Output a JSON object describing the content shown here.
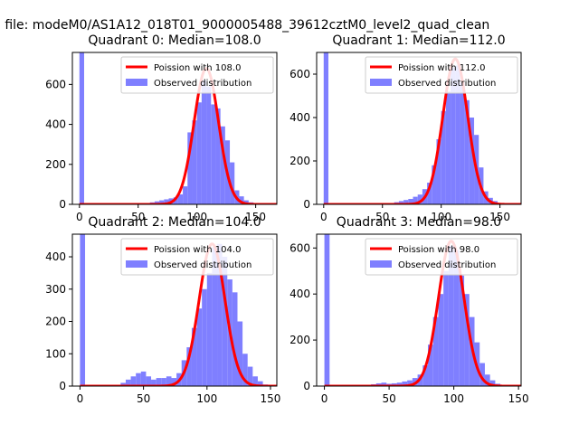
{
  "suptitle": "n file: modeM0/AS1A12_018T01_9000005488_39612cztM0_level2_quad_clean",
  "colors": {
    "bar": "#7f7fff",
    "line": "#ff0000"
  },
  "chart_data": [
    {
      "type": "bar",
      "title": "Quadrant 0: Median=108.0",
      "xlim": [
        -6,
        168
      ],
      "ylim": [
        0,
        760
      ],
      "xticks": [
        0,
        50,
        100,
        150
      ],
      "yticks": [
        0,
        200,
        400,
        600
      ],
      "legend": {
        "placement": "top-right",
        "line_label": "Poission with 108.0",
        "bar_label": "Observed distribution"
      },
      "bins": {
        "x": [
          0,
          4,
          8,
          12,
          16,
          20,
          24,
          28,
          32,
          36,
          40,
          44,
          48,
          52,
          56,
          60,
          64,
          68,
          72,
          76,
          80,
          84,
          88,
          92,
          96,
          100,
          104,
          108,
          112,
          116,
          120,
          124,
          128,
          132,
          136,
          140,
          144,
          148,
          152,
          156,
          160,
          164
        ],
        "values": [
          760,
          0,
          0,
          0,
          0,
          0,
          0,
          0,
          0,
          0,
          0,
          0,
          2,
          4,
          6,
          10,
          15,
          20,
          25,
          30,
          35,
          50,
          90,
          360,
          420,
          510,
          620,
          590,
          500,
          480,
          390,
          320,
          210,
          70,
          40,
          20,
          10,
          5,
          2,
          0,
          0,
          0
        ]
      },
      "poisson": {
        "mean": 108.0,
        "peak": 680
      }
    },
    {
      "type": "bar",
      "title": "Quadrant 1: Median=112.0",
      "xlim": [
        -6,
        168
      ],
      "ylim": [
        0,
        700
      ],
      "xticks": [
        0,
        50,
        100,
        150
      ],
      "yticks": [
        0,
        200,
        400,
        600
      ],
      "legend": {
        "placement": "top-right",
        "line_label": "Poission with 112.0",
        "bar_label": "Observed distribution"
      },
      "bins": {
        "x": [
          0,
          4,
          8,
          12,
          16,
          20,
          24,
          28,
          32,
          36,
          40,
          44,
          48,
          52,
          56,
          60,
          64,
          68,
          72,
          76,
          80,
          84,
          88,
          92,
          96,
          100,
          104,
          108,
          112,
          116,
          120,
          124,
          128,
          132,
          136,
          140,
          144,
          148,
          152,
          156,
          160,
          164
        ],
        "values": [
          700,
          0,
          0,
          0,
          0,
          0,
          0,
          0,
          0,
          0,
          0,
          0,
          2,
          4,
          6,
          10,
          15,
          20,
          25,
          35,
          45,
          70,
          100,
          180,
          300,
          430,
          520,
          630,
          640,
          560,
          480,
          400,
          320,
          170,
          60,
          30,
          15,
          5,
          2,
          0,
          0,
          0
        ]
      },
      "poisson": {
        "mean": 112.0,
        "peak": 670
      }
    },
    {
      "type": "bar",
      "title": "Quadrant 2: Median=104.0",
      "xlim": [
        -6,
        155
      ],
      "ylim": [
        0,
        470
      ],
      "xticks": [
        0,
        50,
        100,
        150
      ],
      "yticks": [
        0,
        100,
        200,
        300,
        400
      ],
      "legend": {
        "placement": "top-right",
        "line_label": "Poission with 104.0",
        "bar_label": "Observed distribution"
      },
      "bins": {
        "x": [
          0,
          4,
          8,
          12,
          16,
          20,
          24,
          28,
          32,
          36,
          40,
          44,
          48,
          52,
          56,
          60,
          64,
          68,
          72,
          76,
          80,
          84,
          88,
          92,
          96,
          100,
          104,
          108,
          112,
          116,
          120,
          124,
          128,
          132,
          136,
          140,
          144,
          148
        ],
        "values": [
          470,
          0,
          0,
          0,
          0,
          0,
          0,
          0,
          10,
          20,
          30,
          40,
          45,
          30,
          20,
          25,
          25,
          30,
          25,
          40,
          80,
          120,
          180,
          240,
          300,
          350,
          430,
          440,
          400,
          330,
          290,
          200,
          100,
          60,
          30,
          15,
          5,
          2
        ]
      },
      "poisson": {
        "mean": 104.0,
        "peak": 440
      }
    },
    {
      "type": "bar",
      "title": "Quadrant 3: Median=98.0",
      "xlim": [
        -6,
        152
      ],
      "ylim": [
        0,
        660
      ],
      "xticks": [
        0,
        50,
        100,
        150
      ],
      "yticks": [
        0,
        200,
        400,
        600
      ],
      "legend": {
        "placement": "top-right",
        "line_label": "Poission with 98.0",
        "bar_label": "Observed distribution"
      },
      "bins": {
        "x": [
          0,
          4,
          8,
          12,
          16,
          20,
          24,
          28,
          32,
          36,
          40,
          44,
          48,
          52,
          56,
          60,
          64,
          68,
          72,
          76,
          80,
          84,
          88,
          92,
          96,
          100,
          104,
          108,
          112,
          116,
          120,
          124,
          128,
          132,
          136,
          140,
          144
        ],
        "values": [
          660,
          0,
          0,
          0,
          0,
          0,
          0,
          0,
          5,
          8,
          12,
          15,
          10,
          12,
          15,
          20,
          25,
          35,
          50,
          90,
          180,
          300,
          400,
          500,
          610,
          590,
          480,
          400,
          300,
          190,
          100,
          50,
          25,
          10,
          5,
          0,
          0
        ]
      },
      "poisson": {
        "mean": 98.0,
        "peak": 630
      }
    }
  ]
}
